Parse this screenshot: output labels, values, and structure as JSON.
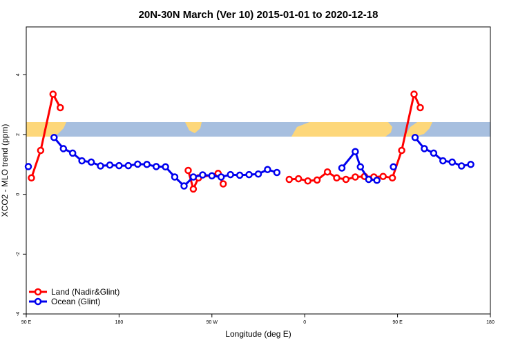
{
  "chart_data": {
    "type": "line",
    "title": "20N-30N March (Ver 10)   2015-01-01 to 2020-12-18",
    "xlabel": "Longitude (deg E)",
    "ylabel": "XCO2 - MLO trend (ppm)",
    "xlim": [
      90,
      540
    ],
    "ylim": [
      -4,
      5.6
    ],
    "x_ticks": [
      {
        "value": 90,
        "label": "90 E"
      },
      {
        "value": 180,
        "label": "180"
      },
      {
        "value": 270,
        "label": "90 W"
      },
      {
        "value": 360,
        "label": "0"
      },
      {
        "value": 450,
        "label": "90 E"
      },
      {
        "value": 540,
        "label": "180"
      }
    ],
    "y_ticks": [
      {
        "value": -4,
        "label": "-4"
      },
      {
        "value": -2,
        "label": "-2"
      },
      {
        "value": 0,
        "label": "0"
      },
      {
        "value": 2,
        "label": "2"
      },
      {
        "value": 4,
        "label": "4"
      }
    ],
    "grid": false,
    "legend": "bottom-left",
    "map_band": {
      "y_range": [
        2.0,
        2.5
      ],
      "ocean_color": "#a7bfdf",
      "land_color": "#fdd77a"
    },
    "series": [
      {
        "name": "Land (Nadir&Glint)",
        "color": "#ff0000",
        "segments": [
          [
            [
              95,
              0.55
            ],
            [
              104,
              1.47
            ],
            [
              116,
              3.35
            ],
            [
              123,
              2.9
            ]
          ],
          [
            [
              247,
              0.8
            ],
            [
              252,
              0.18
            ],
            [
              257,
              0.55
            ],
            [
              276,
              0.7
            ],
            [
              281,
              0.35
            ]
          ],
          [
            [
              345,
              0.5
            ],
            [
              354,
              0.52
            ],
            [
              363,
              0.45
            ],
            [
              372,
              0.48
            ],
            [
              382,
              0.75
            ],
            [
              391,
              0.55
            ],
            [
              400,
              0.5
            ],
            [
              409,
              0.58
            ],
            [
              418,
              0.6
            ],
            [
              427,
              0.58
            ],
            [
              436,
              0.6
            ],
            [
              445,
              0.55
            ],
            [
              454,
              1.47
            ],
            [
              466,
              3.35
            ],
            [
              472,
              2.9
            ]
          ]
        ]
      },
      {
        "name": "Ocean (Glint)",
        "color": "#0000ee",
        "segments": [
          [
            [
              92,
              0.93
            ]
          ],
          [
            [
              117,
              1.9
            ],
            [
              126,
              1.53
            ],
            [
              135,
              1.38
            ],
            [
              144,
              1.12
            ],
            [
              153,
              1.08
            ],
            [
              162,
              0.95
            ],
            [
              171,
              0.98
            ],
            [
              180,
              0.96
            ],
            [
              189,
              0.96
            ],
            [
              198,
              1.01
            ],
            [
              207,
              1.0
            ],
            [
              216,
              0.93
            ],
            [
              225,
              0.92
            ],
            [
              234,
              0.58
            ],
            [
              243,
              0.28
            ],
            [
              252,
              0.58
            ],
            [
              261,
              0.65
            ],
            [
              270,
              0.62
            ],
            [
              279,
              0.58
            ],
            [
              288,
              0.66
            ],
            [
              297,
              0.64
            ],
            [
              306,
              0.66
            ],
            [
              315,
              0.68
            ],
            [
              324,
              0.83
            ],
            [
              333,
              0.73
            ]
          ],
          [
            [
              396,
              0.88
            ],
            [
              409,
              1.43
            ],
            [
              414,
              0.92
            ],
            [
              422,
              0.5
            ],
            [
              430,
              0.47
            ]
          ],
          [
            [
              446,
              0.92
            ]
          ],
          [
            [
              467,
              1.9
            ],
            [
              476,
              1.53
            ],
            [
              485,
              1.38
            ],
            [
              494,
              1.12
            ],
            [
              503,
              1.08
            ],
            [
              512,
              0.95
            ],
            [
              521,
              1.0
            ]
          ]
        ]
      }
    ]
  }
}
